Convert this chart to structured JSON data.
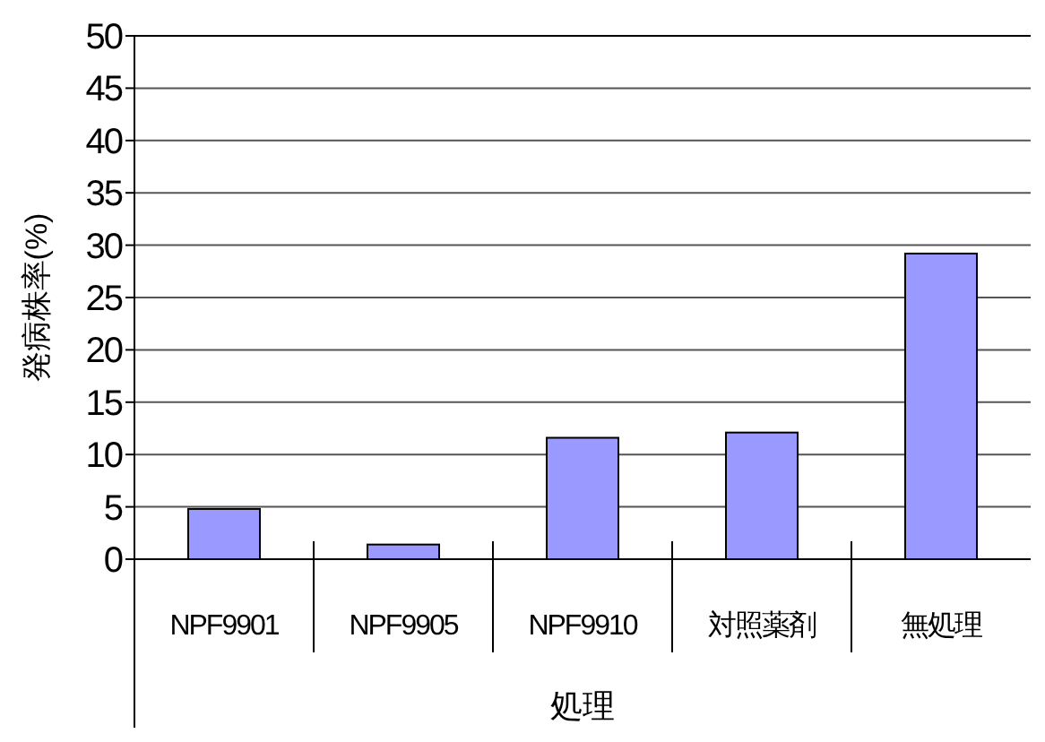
{
  "chart_data": {
    "type": "bar",
    "xlabel": "処理",
    "ylabel": "発病株率(%)",
    "categories": [
      "NPF9901",
      "NPF9905",
      "NPF9910",
      "対照薬剤",
      "無処理"
    ],
    "values": [
      4.8,
      1.4,
      11.6,
      12.1,
      29.2
    ],
    "color": "#9999ff",
    "ylim": [
      0,
      50
    ],
    "yticks": [
      0,
      5,
      10,
      15,
      20,
      25,
      30,
      35,
      40,
      45,
      50
    ],
    "grid": "y"
  }
}
